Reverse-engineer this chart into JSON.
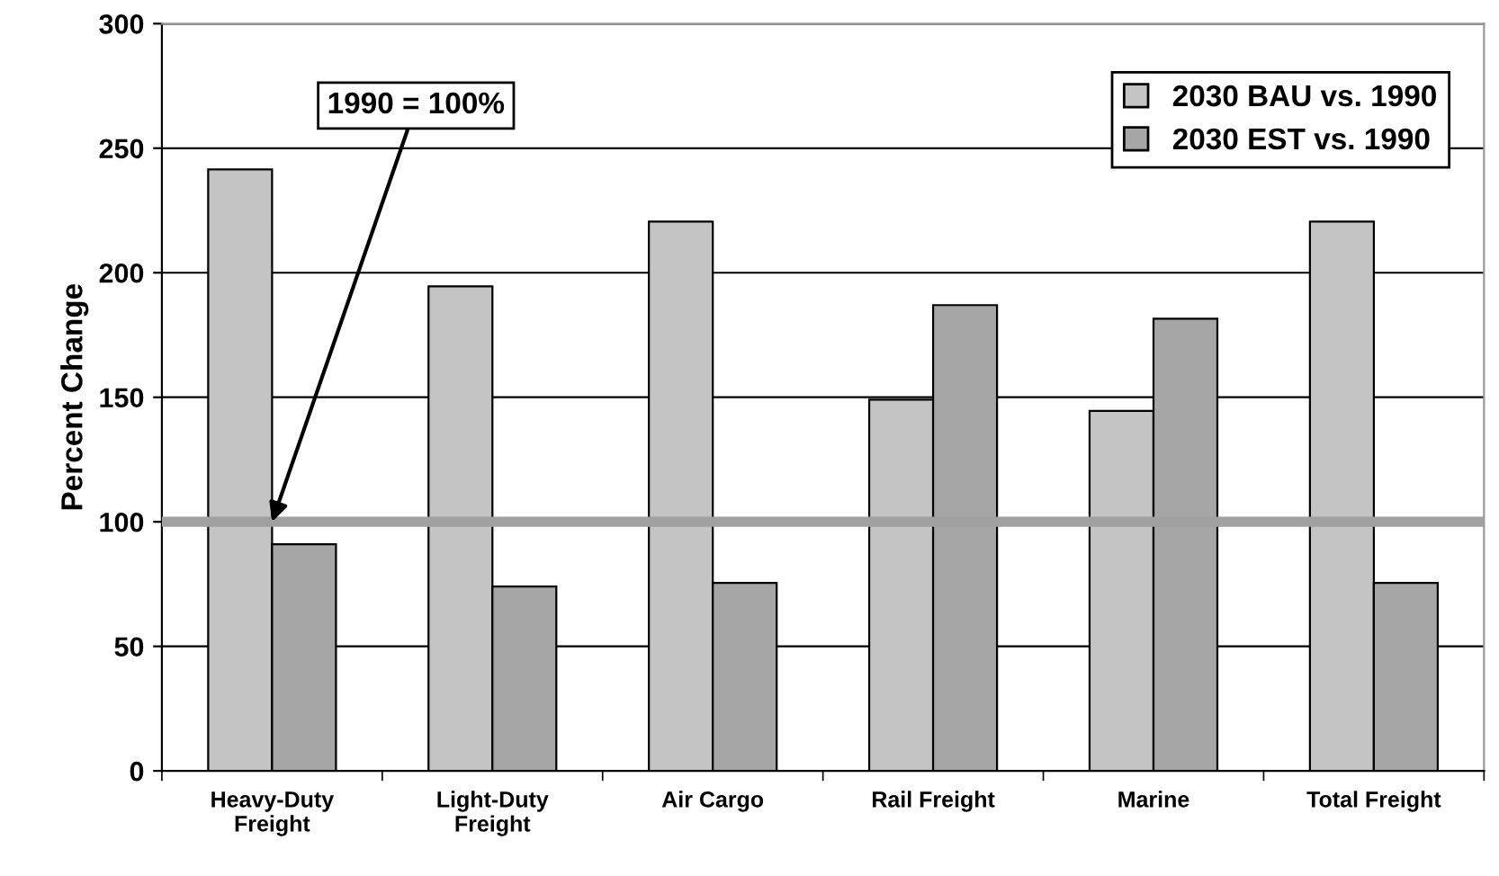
{
  "chart_data": {
    "type": "bar",
    "ylabel": "Percent Change",
    "categories": [
      "Heavy-Duty\nFreight",
      "Light-Duty\nFreight",
      "Air Cargo",
      "Rail Freight",
      "Marine",
      "Total Freight"
    ],
    "series": [
      {
        "name": "2030 BAU vs. 1990",
        "color": "#c4c4c4",
        "values": [
          241.5,
          194.5,
          220.5,
          149,
          144.5,
          220.5
        ]
      },
      {
        "name": "2030 EST vs. 1990",
        "color": "#a6a6a6",
        "values": [
          91,
          74,
          75.5,
          187,
          181.5,
          75.5
        ]
      }
    ],
    "ylim": [
      0,
      300
    ],
    "yticks": [
      0,
      50,
      100,
      150,
      200,
      250,
      300
    ],
    "grid": "y",
    "legend": "top right",
    "ref_lines": [
      {
        "axis": "y",
        "value": 100,
        "color": "#a0a0a0"
      }
    ],
    "annotations": [
      {
        "text": "1990 = 100%",
        "x": "Heavy-Duty\nFreight",
        "y": 100
      }
    ]
  }
}
